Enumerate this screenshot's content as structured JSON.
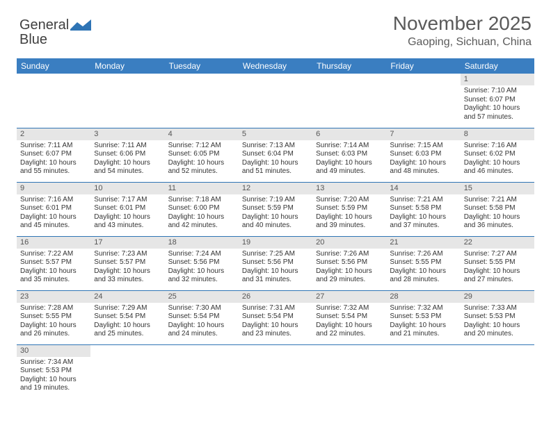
{
  "logo": {
    "part1": "General",
    "part2": "Blue"
  },
  "title": "November 2025",
  "location": "Gaoping, Sichuan, China",
  "colors": {
    "header_bg": "#3a7ec1",
    "header_text": "#ffffff",
    "daynum_bg": "#e6e6e6",
    "cell_border": "#2e74b5",
    "title_color": "#5a5a5a",
    "body_text": "#333333"
  },
  "weekdays": [
    "Sunday",
    "Monday",
    "Tuesday",
    "Wednesday",
    "Thursday",
    "Friday",
    "Saturday"
  ],
  "first_weekday_index": 6,
  "days": [
    {
      "n": 1,
      "sunrise": "7:10 AM",
      "sunset": "6:07 PM",
      "daylight": "10 hours and 57 minutes."
    },
    {
      "n": 2,
      "sunrise": "7:11 AM",
      "sunset": "6:07 PM",
      "daylight": "10 hours and 55 minutes."
    },
    {
      "n": 3,
      "sunrise": "7:11 AM",
      "sunset": "6:06 PM",
      "daylight": "10 hours and 54 minutes."
    },
    {
      "n": 4,
      "sunrise": "7:12 AM",
      "sunset": "6:05 PM",
      "daylight": "10 hours and 52 minutes."
    },
    {
      "n": 5,
      "sunrise": "7:13 AM",
      "sunset": "6:04 PM",
      "daylight": "10 hours and 51 minutes."
    },
    {
      "n": 6,
      "sunrise": "7:14 AM",
      "sunset": "6:03 PM",
      "daylight": "10 hours and 49 minutes."
    },
    {
      "n": 7,
      "sunrise": "7:15 AM",
      "sunset": "6:03 PM",
      "daylight": "10 hours and 48 minutes."
    },
    {
      "n": 8,
      "sunrise": "7:16 AM",
      "sunset": "6:02 PM",
      "daylight": "10 hours and 46 minutes."
    },
    {
      "n": 9,
      "sunrise": "7:16 AM",
      "sunset": "6:01 PM",
      "daylight": "10 hours and 45 minutes."
    },
    {
      "n": 10,
      "sunrise": "7:17 AM",
      "sunset": "6:01 PM",
      "daylight": "10 hours and 43 minutes."
    },
    {
      "n": 11,
      "sunrise": "7:18 AM",
      "sunset": "6:00 PM",
      "daylight": "10 hours and 42 minutes."
    },
    {
      "n": 12,
      "sunrise": "7:19 AM",
      "sunset": "5:59 PM",
      "daylight": "10 hours and 40 minutes."
    },
    {
      "n": 13,
      "sunrise": "7:20 AM",
      "sunset": "5:59 PM",
      "daylight": "10 hours and 39 minutes."
    },
    {
      "n": 14,
      "sunrise": "7:21 AM",
      "sunset": "5:58 PM",
      "daylight": "10 hours and 37 minutes."
    },
    {
      "n": 15,
      "sunrise": "7:21 AM",
      "sunset": "5:58 PM",
      "daylight": "10 hours and 36 minutes."
    },
    {
      "n": 16,
      "sunrise": "7:22 AM",
      "sunset": "5:57 PM",
      "daylight": "10 hours and 35 minutes."
    },
    {
      "n": 17,
      "sunrise": "7:23 AM",
      "sunset": "5:57 PM",
      "daylight": "10 hours and 33 minutes."
    },
    {
      "n": 18,
      "sunrise": "7:24 AM",
      "sunset": "5:56 PM",
      "daylight": "10 hours and 32 minutes."
    },
    {
      "n": 19,
      "sunrise": "7:25 AM",
      "sunset": "5:56 PM",
      "daylight": "10 hours and 31 minutes."
    },
    {
      "n": 20,
      "sunrise": "7:26 AM",
      "sunset": "5:56 PM",
      "daylight": "10 hours and 29 minutes."
    },
    {
      "n": 21,
      "sunrise": "7:26 AM",
      "sunset": "5:55 PM",
      "daylight": "10 hours and 28 minutes."
    },
    {
      "n": 22,
      "sunrise": "7:27 AM",
      "sunset": "5:55 PM",
      "daylight": "10 hours and 27 minutes."
    },
    {
      "n": 23,
      "sunrise": "7:28 AM",
      "sunset": "5:55 PM",
      "daylight": "10 hours and 26 minutes."
    },
    {
      "n": 24,
      "sunrise": "7:29 AM",
      "sunset": "5:54 PM",
      "daylight": "10 hours and 25 minutes."
    },
    {
      "n": 25,
      "sunrise": "7:30 AM",
      "sunset": "5:54 PM",
      "daylight": "10 hours and 24 minutes."
    },
    {
      "n": 26,
      "sunrise": "7:31 AM",
      "sunset": "5:54 PM",
      "daylight": "10 hours and 23 minutes."
    },
    {
      "n": 27,
      "sunrise": "7:32 AM",
      "sunset": "5:54 PM",
      "daylight": "10 hours and 22 minutes."
    },
    {
      "n": 28,
      "sunrise": "7:32 AM",
      "sunset": "5:53 PM",
      "daylight": "10 hours and 21 minutes."
    },
    {
      "n": 29,
      "sunrise": "7:33 AM",
      "sunset": "5:53 PM",
      "daylight": "10 hours and 20 minutes."
    },
    {
      "n": 30,
      "sunrise": "7:34 AM",
      "sunset": "5:53 PM",
      "daylight": "10 hours and 19 minutes."
    }
  ],
  "labels": {
    "sunrise": "Sunrise: ",
    "sunset": "Sunset: ",
    "daylight": "Daylight: "
  }
}
